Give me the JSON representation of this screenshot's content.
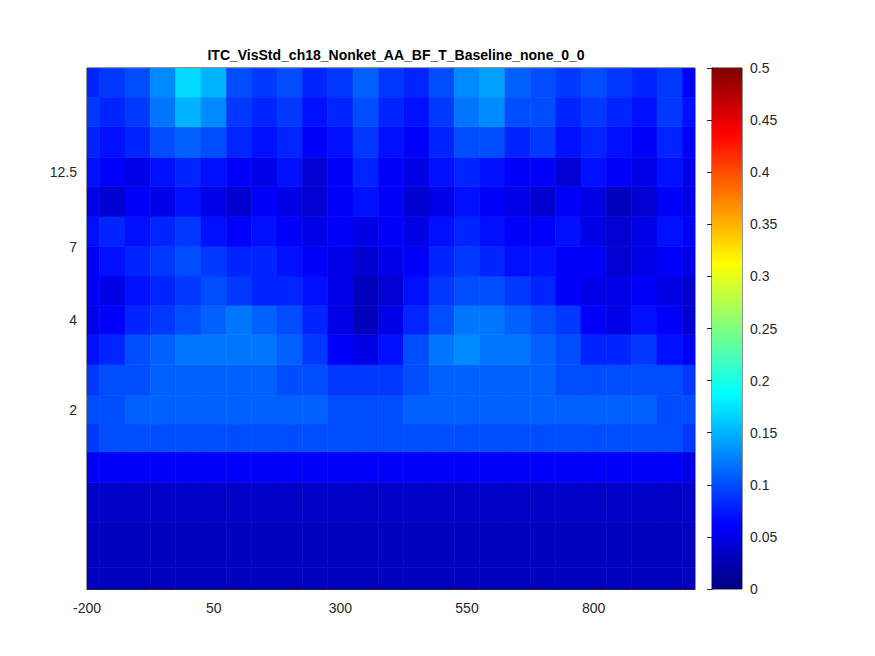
{
  "chart_data": {
    "type": "heatmap",
    "title": "ITC_VisStd_ch18_Nonket_AA_BF_T_Baseline_none_0_0",
    "x": [
      -200,
      -150,
      -100,
      -50,
      0,
      50,
      100,
      150,
      200,
      250,
      300,
      350,
      400,
      450,
      500,
      550,
      600,
      650,
      700,
      750,
      800,
      850,
      900,
      950,
      1000
    ],
    "y": [
      0.5,
      0.7,
      1,
      1.3,
      1.6,
      2,
      2.5,
      3.2,
      4,
      5,
      6.3,
      7.9,
      10,
      12.5,
      15.8,
      20,
      25
    ],
    "values": [
      [
        0.03,
        0.03,
        0.03,
        0.03,
        0.03,
        0.03,
        0.03,
        0.03,
        0.03,
        0.03,
        0.03,
        0.03,
        0.03,
        0.03,
        0.03,
        0.03,
        0.03,
        0.03,
        0.03,
        0.03,
        0.03,
        0.03,
        0.03,
        0.03,
        0.03
      ],
      [
        0.03,
        0.03,
        0.03,
        0.03,
        0.03,
        0.03,
        0.03,
        0.03,
        0.03,
        0.03,
        0.03,
        0.03,
        0.03,
        0.03,
        0.03,
        0.03,
        0.03,
        0.03,
        0.03,
        0.03,
        0.03,
        0.03,
        0.03,
        0.03,
        0.03
      ],
      [
        0.035,
        0.035,
        0.035,
        0.035,
        0.035,
        0.035,
        0.035,
        0.035,
        0.035,
        0.035,
        0.035,
        0.035,
        0.035,
        0.035,
        0.035,
        0.035,
        0.035,
        0.035,
        0.035,
        0.035,
        0.035,
        0.035,
        0.035,
        0.035,
        0.035
      ],
      [
        0.06,
        0.06,
        0.06,
        0.06,
        0.06,
        0.06,
        0.06,
        0.06,
        0.06,
        0.06,
        0.06,
        0.06,
        0.06,
        0.06,
        0.06,
        0.06,
        0.06,
        0.06,
        0.06,
        0.06,
        0.06,
        0.06,
        0.06,
        0.06,
        0.05
      ],
      [
        0.09,
        0.1,
        0.1,
        0.1,
        0.1,
        0.1,
        0.1,
        0.1,
        0.1,
        0.1,
        0.1,
        0.1,
        0.1,
        0.1,
        0.1,
        0.1,
        0.1,
        0.1,
        0.1,
        0.1,
        0.1,
        0.1,
        0.1,
        0.1,
        0.09
      ],
      [
        0.1,
        0.1,
        0.11,
        0.11,
        0.11,
        0.11,
        0.11,
        0.11,
        0.11,
        0.11,
        0.1,
        0.1,
        0.1,
        0.11,
        0.11,
        0.11,
        0.11,
        0.11,
        0.11,
        0.11,
        0.11,
        0.11,
        0.11,
        0.1,
        0.1
      ],
      [
        0.09,
        0.1,
        0.1,
        0.11,
        0.11,
        0.11,
        0.11,
        0.11,
        0.1,
        0.1,
        0.09,
        0.09,
        0.09,
        0.1,
        0.11,
        0.11,
        0.11,
        0.11,
        0.11,
        0.1,
        0.1,
        0.1,
        0.1,
        0.1,
        0.09
      ],
      [
        0.07,
        0.08,
        0.1,
        0.11,
        0.12,
        0.12,
        0.12,
        0.12,
        0.11,
        0.09,
        0.06,
        0.05,
        0.07,
        0.1,
        0.12,
        0.13,
        0.12,
        0.12,
        0.11,
        0.1,
        0.08,
        0.08,
        0.09,
        0.07,
        0.06
      ],
      [
        0.05,
        0.06,
        0.08,
        0.09,
        0.1,
        0.11,
        0.12,
        0.11,
        0.1,
        0.08,
        0.05,
        0.03,
        0.05,
        0.08,
        0.1,
        0.12,
        0.12,
        0.11,
        0.1,
        0.09,
        0.06,
        0.05,
        0.07,
        0.06,
        0.04
      ],
      [
        0.06,
        0.05,
        0.07,
        0.08,
        0.09,
        0.1,
        0.09,
        0.08,
        0.08,
        0.07,
        0.05,
        0.03,
        0.04,
        0.07,
        0.09,
        0.1,
        0.1,
        0.09,
        0.08,
        0.06,
        0.05,
        0.05,
        0.06,
        0.05,
        0.04
      ],
      [
        0.06,
        0.07,
        0.08,
        0.09,
        0.1,
        0.09,
        0.08,
        0.08,
        0.07,
        0.06,
        0.05,
        0.04,
        0.05,
        0.06,
        0.08,
        0.09,
        0.08,
        0.07,
        0.07,
        0.06,
        0.06,
        0.04,
        0.05,
        0.06,
        0.05
      ],
      [
        0.07,
        0.08,
        0.07,
        0.08,
        0.09,
        0.07,
        0.06,
        0.07,
        0.06,
        0.05,
        0.06,
        0.05,
        0.06,
        0.05,
        0.07,
        0.08,
        0.07,
        0.06,
        0.06,
        0.07,
        0.05,
        0.04,
        0.05,
        0.07,
        0.06
      ],
      [
        0.05,
        0.04,
        0.06,
        0.05,
        0.07,
        0.05,
        0.04,
        0.06,
        0.05,
        0.04,
        0.06,
        0.07,
        0.06,
        0.04,
        0.05,
        0.07,
        0.06,
        0.05,
        0.04,
        0.06,
        0.05,
        0.03,
        0.04,
        0.06,
        0.05
      ],
      [
        0.07,
        0.06,
        0.05,
        0.07,
        0.08,
        0.07,
        0.06,
        0.05,
        0.07,
        0.04,
        0.06,
        0.08,
        0.06,
        0.05,
        0.07,
        0.08,
        0.07,
        0.06,
        0.06,
        0.04,
        0.07,
        0.06,
        0.05,
        0.07,
        0.05
      ],
      [
        0.08,
        0.07,
        0.08,
        0.1,
        0.11,
        0.1,
        0.08,
        0.07,
        0.08,
        0.06,
        0.07,
        0.09,
        0.07,
        0.06,
        0.08,
        0.1,
        0.1,
        0.08,
        0.09,
        0.07,
        0.08,
        0.07,
        0.06,
        0.08,
        0.06
      ],
      [
        0.09,
        0.08,
        0.09,
        0.12,
        0.15,
        0.13,
        0.09,
        0.08,
        0.09,
        0.07,
        0.08,
        0.1,
        0.08,
        0.07,
        0.09,
        0.12,
        0.13,
        0.1,
        0.1,
        0.08,
        0.09,
        0.08,
        0.07,
        0.09,
        0.07
      ],
      [
        0.08,
        0.09,
        0.1,
        0.13,
        0.17,
        0.15,
        0.1,
        0.09,
        0.1,
        0.08,
        0.09,
        0.11,
        0.09,
        0.08,
        0.1,
        0.13,
        0.14,
        0.11,
        0.1,
        0.09,
        0.1,
        0.09,
        0.08,
        0.09,
        0.06
      ]
    ],
    "xlim": [
      -200,
      1000
    ],
    "xticks": [
      -200,
      50,
      300,
      550,
      800
    ],
    "ylim": [
      0.5,
      28
    ],
    "yticks": [
      2,
      4,
      7,
      12.5
    ],
    "log": "y",
    "colorbar": {
      "lim": [
        0,
        0.5
      ],
      "ticks": [
        0,
        0.05,
        0.1,
        0.15,
        0.2,
        0.25,
        0.3,
        0.35,
        0.4,
        0.45,
        0.5
      ]
    }
  }
}
